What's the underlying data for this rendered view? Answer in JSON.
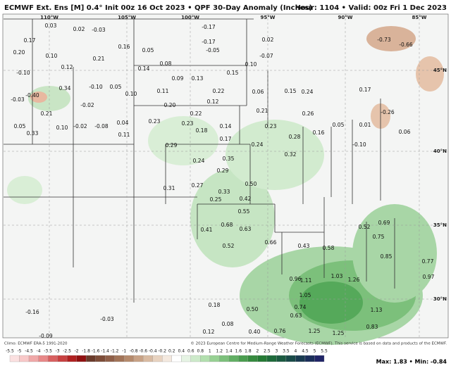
{
  "header": {
    "title": "ECMWF Ext. Ens [M] 0.4° Init 00z 16 Oct 2023 • QPF 30-Day Anomaly (Inches)",
    "valid": "Hour: 1104 • Valid: 00z Fri 1 Dec 2023"
  },
  "longitudes": [
    "110°W",
    "105°W",
    "100°W",
    "95°W",
    "90°W",
    "85°W"
  ],
  "latitudes": [
    "45°N",
    "40°N",
    "35°N",
    "30°N"
  ],
  "points": [
    "0.03",
    "0.02",
    "-0.03",
    "0.17",
    "0.20",
    "0.10",
    "0.21",
    "0.16",
    "0.05",
    "-0.17",
    "-0.17",
    "-0.05",
    "0.02",
    "-0.07",
    "0.10",
    "0.12",
    "0.14",
    "0.08",
    "0.15",
    "-0.10",
    "-0.40",
    "-0.03",
    "0.34",
    "-0.10",
    "0.05",
    "0.10",
    "0.11",
    "0.09",
    "0.13",
    "0.22",
    "0.06",
    "0.15",
    "0.24",
    "0.17",
    "-0.02",
    "0.21",
    "0.20",
    "0.12",
    "0.21",
    "0.26",
    "-0.26",
    "0.05",
    "0.10",
    "-0.02",
    "-0.08",
    "0.04",
    "0.23",
    "0.22",
    "0.23",
    "0.18",
    "0.14",
    "0.23",
    "0.28",
    "0.16",
    "0.05",
    "0.01",
    "0.06",
    "0.33",
    "0.11",
    "0.17",
    "0.24",
    "-0.10",
    "0.32",
    "0.29",
    "0.24",
    "0.35",
    "0.29",
    "0.50",
    "0.27",
    "0.33",
    "0.31",
    "0.25",
    "0.42",
    "0.55",
    "0.63",
    "0.68",
    "0.41",
    "0.52",
    "0.66",
    "0.43",
    "0.58",
    "0.52",
    "0.69",
    "0.75",
    "0.85",
    "0.77",
    "0.97",
    "1.03",
    "1.26",
    "0.96",
    "1.11",
    "1.05",
    "0.74",
    "0.63",
    "1.13",
    "0.83",
    "1.25",
    "1.25",
    "0.76",
    "0.40",
    "0.50",
    "-0.16",
    "-0.03",
    "-0.09",
    "0.18",
    "0.08",
    "0.12",
    "-0.73",
    "-0.66"
  ],
  "legend": {
    "ticks": [
      "-5.5",
      "-5",
      "-4.5",
      "-4",
      "-3.5",
      "-3",
      "-2.5",
      "-2",
      "-1.8",
      "-1.6",
      "-1.4",
      "-1.2",
      "-1",
      "-0.8",
      "-0.6",
      "-0.4",
      "-0.2",
      "0.2",
      "0.4",
      "0.6",
      "0.8",
      "1",
      "1.2",
      "1.4",
      "1.6",
      "1.8",
      "2",
      "2.5",
      "3",
      "3.5",
      "4",
      "4.5",
      "5",
      "5.5"
    ]
  },
  "footer": {
    "climo": "Climo: ECMWF ERA-5 1991-2020",
    "copyright": "© 2023 European Centre for Medium-Range Weather Forecasts (ECMWF). This service is based on data and products of the ECMWF.",
    "stats": "Max: 1.83 • Min: -0.84"
  }
}
